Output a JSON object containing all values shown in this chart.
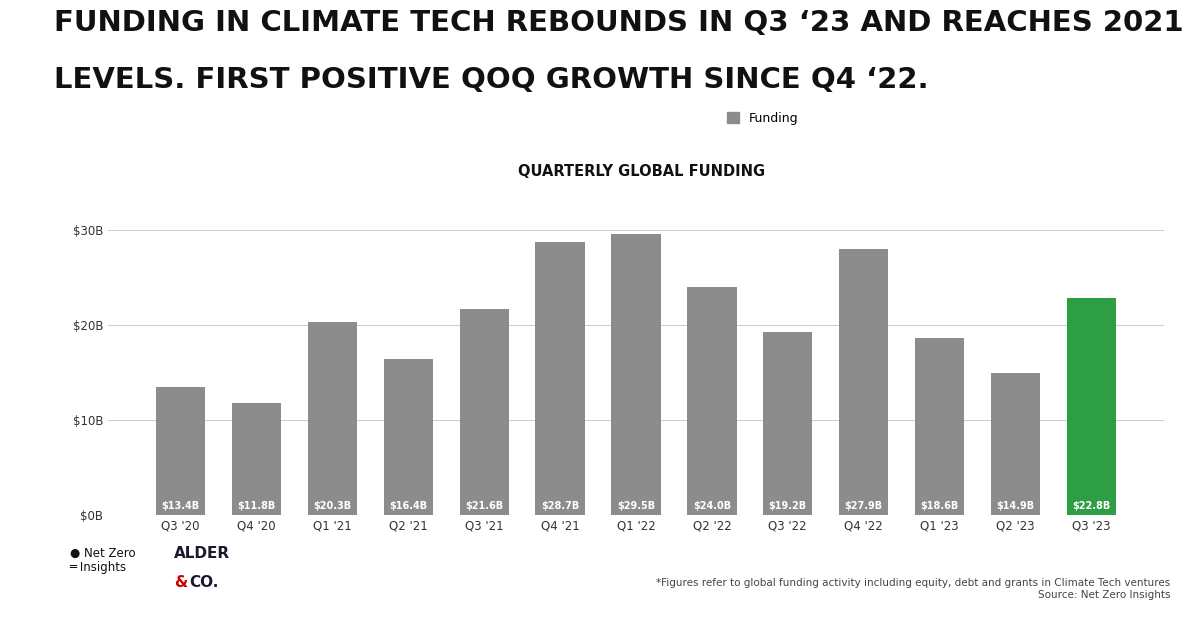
{
  "categories": [
    "Q3 '20",
    "Q4 '20",
    "Q1 '21",
    "Q2 '21",
    "Q3 '21",
    "Q4 '21",
    "Q1 '22",
    "Q2 '22",
    "Q3 '22",
    "Q4 '22",
    "Q1 '23",
    "Q2 '23",
    "Q3 '23"
  ],
  "values": [
    13.4,
    11.8,
    20.3,
    16.4,
    21.6,
    28.7,
    29.5,
    24.0,
    19.2,
    27.9,
    18.6,
    14.9,
    22.8
  ],
  "labels": [
    "$13.4B",
    "$11.8B",
    "$20.3B",
    "$16.4B",
    "$21.6B",
    "$28.7B",
    "$29.5B",
    "$24.0B",
    "$19.2B",
    "$27.9B",
    "$18.6B",
    "$14.9B",
    "$22.8B"
  ],
  "bar_colors": [
    "#8c8c8c",
    "#8c8c8c",
    "#8c8c8c",
    "#8c8c8c",
    "#8c8c8c",
    "#8c8c8c",
    "#8c8c8c",
    "#8c8c8c",
    "#8c8c8c",
    "#8c8c8c",
    "#8c8c8c",
    "#8c8c8c",
    "#2e9e44"
  ],
  "title_line1": "FUNDING IN CLIMATE TECH REBOUNDS IN Q3 ‘23 AND REACHES 2021",
  "title_line2": "LEVELS. FIRST POSITIVE QOQ GROWTH SINCE Q4 ‘22.",
  "chart_title": "QUARTERLY GLOBAL FUNDING",
  "legend_label": "Funding",
  "legend_color": "#8c8c8c",
  "ylabel_ticks": [
    "$0B",
    "$10B",
    "$20B",
    "$30B"
  ],
  "ytick_values": [
    0,
    10,
    20,
    30
  ],
  "ylim": [
    0,
    33
  ],
  "background_color": "#ffffff",
  "bar_label_color": "#ffffff",
  "bar_label_fontsize": 7.0,
  "footnote": "*Figures refer to global funding activity including equity, debt and grants in Climate Tech ventures\nSource: Net Zero Insights",
  "title_fontsize": 21,
  "chart_title_fontsize": 10.5,
  "xlabel_fontsize": 8.5,
  "ylabel_fontsize": 8.5,
  "footnote_fontsize": 7.5
}
